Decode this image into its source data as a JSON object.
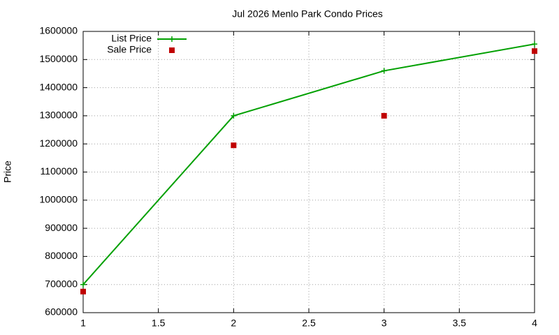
{
  "chart_data": {
    "type": "line",
    "title": "Jul 2026 Menlo Park Condo Prices",
    "y_label": "Price",
    "x": [
      1,
      2,
      3,
      4
    ],
    "series": [
      {
        "name": "List Price",
        "color": "#00a000",
        "style": "linespoints",
        "values": [
          700000,
          1300000,
          1460000,
          1555000
        ]
      },
      {
        "name": "Sale Price",
        "color": "#c00000",
        "style": "points",
        "values": [
          675000,
          1195000,
          1300000,
          1530000
        ]
      }
    ],
    "xlim": [
      1,
      4
    ],
    "xticks": [
      1,
      1.5,
      2,
      2.5,
      3,
      3.5,
      4
    ],
    "ylim": [
      600000,
      1600000
    ],
    "yticks": [
      600000,
      700000,
      800000,
      900000,
      1000000,
      1100000,
      1200000,
      1300000,
      1400000,
      1500000,
      1600000
    ],
    "grid": true,
    "legend": "top-left"
  }
}
